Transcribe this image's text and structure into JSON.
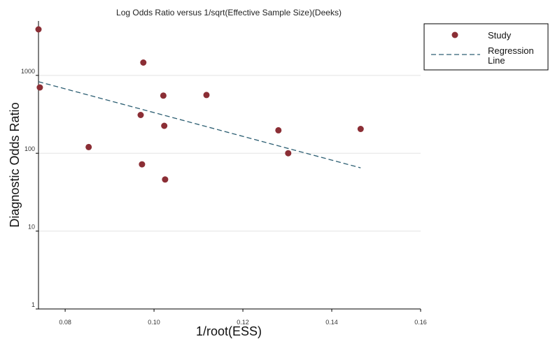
{
  "chart_data": {
    "type": "scatter",
    "title": "Log Odds Ratio versus 1/sqrt(Effective Sample Size)(Deeks)",
    "xlabel": "1/root(ESS)",
    "ylabel": "Diagnostic Odds Ratio",
    "xlim": [
      0.074,
      0.16
    ],
    "ylim": [
      1,
      5000
    ],
    "yscale": "log",
    "grid": "horizontal",
    "legend_position": "right",
    "x_ticks": [
      {
        "value": 0.08,
        "label": "0.08"
      },
      {
        "value": 0.1,
        "label": "0.10"
      },
      {
        "value": 0.12,
        "label": "0.12"
      },
      {
        "value": 0.14,
        "label": "0.14"
      },
      {
        "value": 0.16,
        "label": "0.16"
      }
    ],
    "y_ticks": [
      {
        "value": 1,
        "label": "1"
      },
      {
        "value": 10,
        "label": "10"
      },
      {
        "value": 100,
        "label": "100"
      },
      {
        "value": 1000,
        "label": "1000"
      }
    ],
    "series": [
      {
        "name": "Study",
        "kind": "scatter",
        "color": "#8b2e35",
        "points": [
          {
            "x": 0.074,
            "y": 3900
          },
          {
            "x": 0.0743,
            "y": 700
          },
          {
            "x": 0.0853,
            "y": 120
          },
          {
            "x": 0.097,
            "y": 310
          },
          {
            "x": 0.0973,
            "y": 72
          },
          {
            "x": 0.0976,
            "y": 1460
          },
          {
            "x": 0.1021,
            "y": 550
          },
          {
            "x": 0.1023,
            "y": 225
          },
          {
            "x": 0.1025,
            "y": 46
          },
          {
            "x": 0.1118,
            "y": 560
          },
          {
            "x": 0.128,
            "y": 197
          },
          {
            "x": 0.1302,
            "y": 100
          },
          {
            "x": 0.1465,
            "y": 205
          }
        ]
      },
      {
        "name": "Regression Line",
        "kind": "line",
        "style": "dashed",
        "color": "#2d5f73",
        "points": [
          {
            "x": 0.074,
            "y": 830
          },
          {
            "x": 0.1465,
            "y": 65
          }
        ]
      }
    ],
    "legend": [
      {
        "label_lines": [
          "Study"
        ],
        "marker": "dot"
      },
      {
        "label_lines": [
          "Regression",
          "Line"
        ],
        "marker": "dash"
      }
    ]
  }
}
